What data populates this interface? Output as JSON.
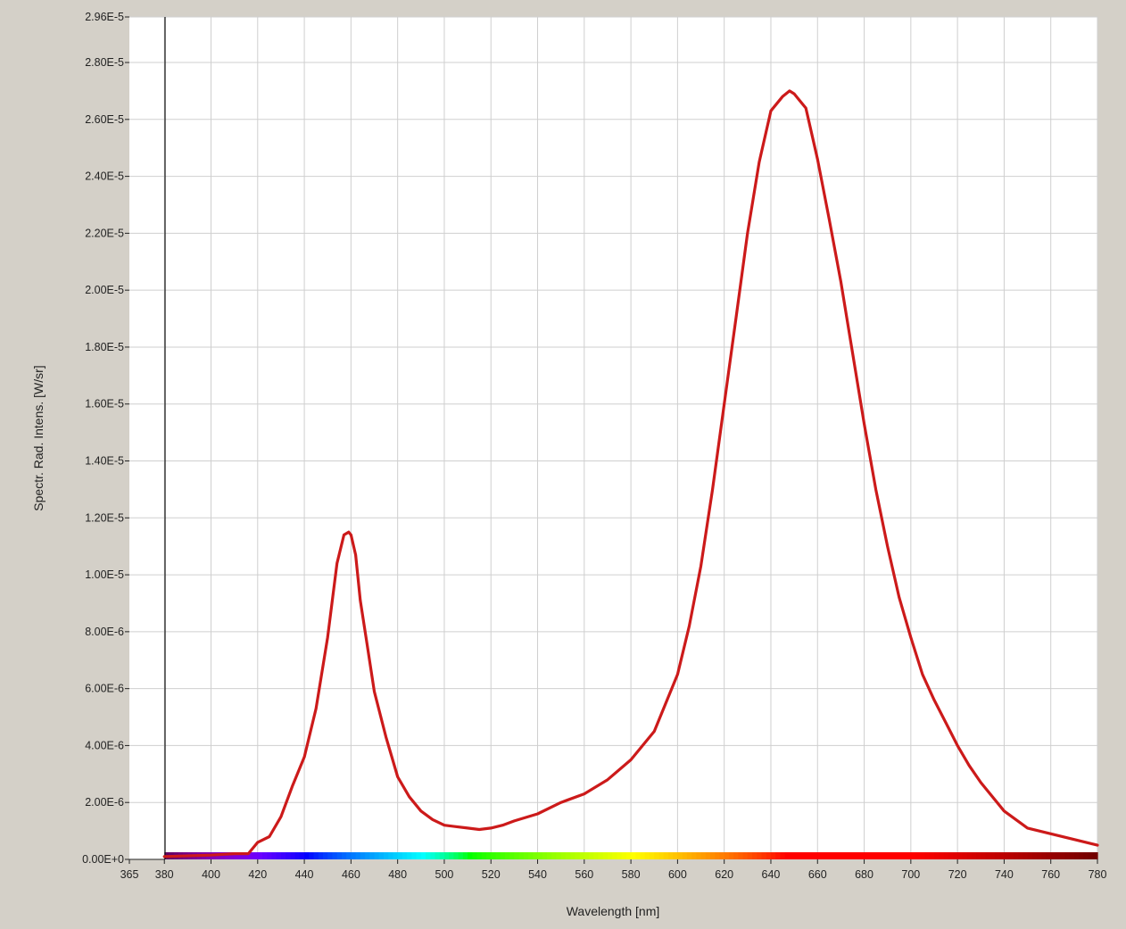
{
  "chart_data": {
    "type": "line",
    "title": "",
    "xlabel": "Wavelength [nm]",
    "ylabel": "Spectr. Rad. Intens. [W/sr]",
    "xlim": [
      365,
      780
    ],
    "ylim": [
      0,
      2.96e-05
    ],
    "x_ticks": [
      365,
      380,
      400,
      420,
      440,
      460,
      480,
      500,
      520,
      540,
      560,
      580,
      600,
      620,
      640,
      660,
      680,
      700,
      720,
      740,
      760,
      780
    ],
    "x_tick_labels": [
      "365",
      "380",
      "400",
      "420",
      "440",
      "460",
      "480",
      "500",
      "520",
      "540",
      "560",
      "580",
      "600",
      "620",
      "640",
      "660",
      "680",
      "700",
      "720",
      "740",
      "760",
      "780"
    ],
    "y_ticks": [
      0,
      2e-06,
      4e-06,
      6e-06,
      8e-06,
      1e-05,
      1.2e-05,
      1.4e-05,
      1.6e-05,
      1.8e-05,
      2e-05,
      2.2e-05,
      2.4e-05,
      2.6e-05,
      2.8e-05,
      2.96e-05
    ],
    "y_tick_labels": [
      "0.00E+0",
      "2.00E-6",
      "4.00E-6",
      "6.00E-6",
      "8.00E-6",
      "1.00E-5",
      "1.20E-5",
      "1.40E-5",
      "1.60E-5",
      "1.80E-5",
      "2.00E-5",
      "2.20E-5",
      "2.40E-5",
      "2.60E-5",
      "2.80E-5",
      "2.96E-5"
    ],
    "grid": true,
    "legend": "none",
    "series": [
      {
        "color": "#cc1a1a",
        "x": [
          380,
          400,
          410,
          416,
          420,
          425,
          430,
          435,
          440,
          445,
          450,
          454,
          457,
          459,
          460,
          462,
          464,
          467,
          470,
          475,
          480,
          485,
          490,
          495,
          500,
          505,
          510,
          515,
          520,
          525,
          530,
          540,
          550,
          560,
          570,
          580,
          590,
          600,
          605,
          610,
          615,
          620,
          625,
          630,
          635,
          640,
          645,
          648,
          650,
          652,
          655,
          660,
          665,
          670,
          675,
          680,
          685,
          690,
          695,
          700,
          705,
          710,
          715,
          720,
          725,
          730,
          740,
          750,
          760,
          770,
          780
        ],
        "y": [
          1e-07,
          1.5e-07,
          2e-07,
          2e-07,
          6e-07,
          8e-07,
          1.5e-06,
          2.6e-06,
          3.6e-06,
          5.3e-06,
          7.8e-06,
          1.04e-05,
          1.14e-05,
          1.15e-05,
          1.14e-05,
          1.07e-05,
          9.1e-06,
          7.5e-06,
          5.9e-06,
          4.3e-06,
          2.9e-06,
          2.2e-06,
          1.7e-06,
          1.4e-06,
          1.2e-06,
          1.15e-06,
          1.1e-06,
          1.05e-06,
          1.1e-06,
          1.2e-06,
          1.35e-06,
          1.6e-06,
          2e-06,
          2.3e-06,
          2.8e-06,
          3.5e-06,
          4.5e-06,
          6.5e-06,
          8.2e-06,
          1.03e-05,
          1.3e-05,
          1.6e-05,
          1.9e-05,
          2.2e-05,
          2.45e-05,
          2.63e-05,
          2.68e-05,
          2.7e-05,
          2.69e-05,
          2.67e-05,
          2.64e-05,
          2.46e-05,
          2.25e-05,
          2.03e-05,
          1.78e-05,
          1.53e-05,
          1.3e-05,
          1.1e-05,
          9.2e-06,
          7.8e-06,
          6.5e-06,
          5.6e-06,
          4.8e-06,
          4e-06,
          3.3e-06,
          2.7e-06,
          1.7e-06,
          1.1e-06,
          9e-07,
          7e-07,
          5e-07
        ]
      }
    ]
  }
}
